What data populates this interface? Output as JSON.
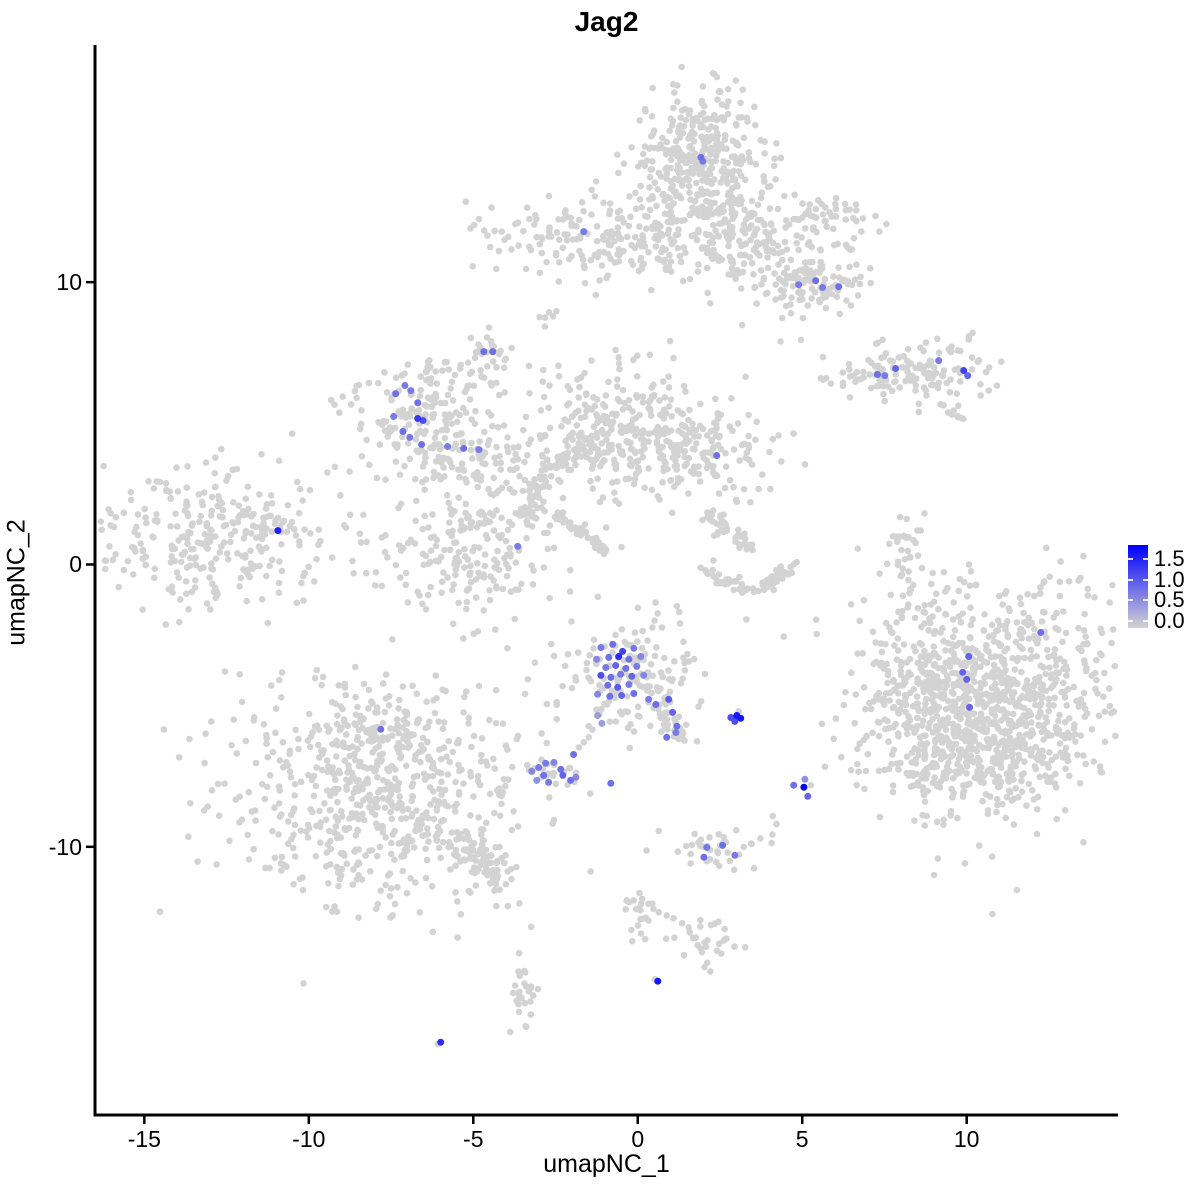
{
  "title": "Jag2",
  "axes": {
    "x_label": "umapNC_1",
    "y_label": "umapNC_2",
    "x_ticks": [
      "-15",
      "-10",
      "-5",
      "0",
      "5",
      "10"
    ],
    "x_tick_values": [
      -15,
      -10,
      -5,
      0,
      5,
      10
    ],
    "y_ticks": [
      "10",
      "0",
      "-10"
    ],
    "y_tick_values": [
      10,
      0,
      -10
    ]
  },
  "legend": {
    "tick_labels": [
      "1.5",
      "1.0",
      "0.5",
      "0.0"
    ],
    "tick_values": [
      1.5,
      1.0,
      0.5,
      0.0
    ],
    "low_color": "#d3d3d3",
    "high_color": "#0000ff",
    "bar_min": -0.17,
    "bar_max": 1.84
  },
  "colors": {
    "point_grey": "#d3d3d3",
    "axis": "#000000"
  },
  "chart_data": {
    "type": "scatter",
    "title": "Jag2",
    "xlabel": "umapNC_1",
    "ylabel": "umapNC_2",
    "x_domain": [
      -16.5,
      14.6
    ],
    "y_domain": [
      -19.5,
      18.4
    ],
    "point_radius_px": 3.3,
    "value_range": [
      0,
      1.9
    ],
    "grey_clusters": [
      {
        "type": "blob",
        "cx": 1.9,
        "cy": 14.2,
        "sx": 1.05,
        "sy": 1.25,
        "n": 380
      },
      {
        "type": "blob",
        "cx": 1.5,
        "cy": 11.6,
        "sx": 1.5,
        "sy": 0.9,
        "n": 110
      },
      {
        "type": "blob",
        "cx": 4.3,
        "cy": 10.9,
        "sx": 1.3,
        "sy": 1.0,
        "n": 140
      },
      {
        "type": "blob",
        "cx": 5.4,
        "cy": 9.9,
        "sx": 0.75,
        "sy": 0.5,
        "n": 70
      },
      {
        "type": "blob",
        "cx": 6.2,
        "cy": 12.4,
        "sx": 0.7,
        "sy": 0.35,
        "n": 35
      },
      {
        "type": "blob",
        "cx": 3.0,
        "cy": 12.2,
        "sx": 0.8,
        "sy": 0.7,
        "n": 45
      },
      {
        "type": "blob",
        "cx": -2.0,
        "cy": 11.7,
        "sx": 1.3,
        "sy": 0.7,
        "n": 110
      },
      {
        "type": "blob",
        "cx": -0.3,
        "cy": 11.2,
        "sx": 0.7,
        "sy": 0.4,
        "n": 25
      },
      {
        "type": "blob",
        "cx": -2.7,
        "cy": 8.8,
        "sx": 0.25,
        "sy": 0.2,
        "n": 6
      },
      {
        "type": "blob",
        "cx": -4.5,
        "cy": 7.4,
        "sx": 0.35,
        "sy": 0.4,
        "n": 24
      },
      {
        "type": "blob",
        "cx": 8.9,
        "cy": 6.9,
        "sx": 1.2,
        "sy": 0.5,
        "n": 95
      },
      {
        "type": "blob",
        "cx": 7.4,
        "cy": 6.6,
        "sx": 0.85,
        "sy": 0.3,
        "n": 45
      },
      {
        "type": "line",
        "x1": 9.3,
        "y1": 5.6,
        "x2": 9.8,
        "y2": 5.0,
        "n": 12,
        "jitter": 0.12
      },
      {
        "type": "blob",
        "cx": -6.6,
        "cy": 5.3,
        "sx": 1.3,
        "sy": 1.1,
        "n": 160
      },
      {
        "type": "blob",
        "cx": -4.9,
        "cy": 4.0,
        "sx": 1.1,
        "sy": 0.5,
        "n": 60
      },
      {
        "type": "blob",
        "cx": -5.6,
        "cy": 6.4,
        "sx": 0.8,
        "sy": 0.4,
        "n": 25
      },
      {
        "type": "blob",
        "cx": -0.8,
        "cy": 4.8,
        "sx": 1.3,
        "sy": 1.3,
        "n": 230
      },
      {
        "type": "line",
        "x1": -2.9,
        "y1": 3.2,
        "x2": -1.4,
        "y2": 4.4,
        "n": 50,
        "jitter": 0.25
      },
      {
        "type": "blob",
        "cx": 1.9,
        "cy": 3.9,
        "sx": 1.1,
        "sy": 0.9,
        "n": 150
      },
      {
        "type": "blob",
        "cx": 0.6,
        "cy": 4.5,
        "sx": 0.7,
        "sy": 0.5,
        "n": 35
      },
      {
        "type": "line",
        "x1": -3.0,
        "y1": 2.9,
        "x2": -3.4,
        "y2": 1.6,
        "n": 45,
        "jitter": 0.2
      },
      {
        "type": "blob",
        "cx": -5.2,
        "cy": 0.5,
        "sx": 1.4,
        "sy": 1.3,
        "n": 210
      },
      {
        "type": "line",
        "x1": -2.5,
        "y1": 1.8,
        "x2": -1.0,
        "y2": 0.5,
        "n": 50,
        "jitter": 0.07
      },
      {
        "type": "blob",
        "cx": -4.2,
        "cy": 2.5,
        "sx": 0.7,
        "sy": 0.5,
        "n": 18
      },
      {
        "type": "blob",
        "cx": -13.0,
        "cy": 1.1,
        "sx": 1.8,
        "sy": 1.3,
        "n": 290
      },
      {
        "type": "blob",
        "cx": -11.4,
        "cy": 1.3,
        "sx": 0.5,
        "sy": 0.3,
        "n": 22
      },
      {
        "type": "line",
        "x1": 2.1,
        "y1": 1.8,
        "x2": 3.3,
        "y2": 0.6,
        "n": 40,
        "jitter": 0.15
      },
      {
        "type": "arc",
        "cx": 3.35,
        "cy": 0.35,
        "rx": 1.3,
        "ry": 1.15,
        "a0": 195,
        "a1": 345,
        "n": 75,
        "jitter": 0.13
      },
      {
        "type": "blob",
        "cx": 8.2,
        "cy": 0.0,
        "sx": 0.3,
        "sy": 1.1,
        "n": 40
      },
      {
        "type": "blob",
        "cx": 10.7,
        "cy": -5.0,
        "sx": 2.0,
        "sy": 1.9,
        "n": 1050
      },
      {
        "type": "blob",
        "cx": 8.9,
        "cy": -4.4,
        "sx": 0.7,
        "sy": 1.6,
        "n": 90
      },
      {
        "type": "blob",
        "cx": 10.3,
        "cy": -7.4,
        "sx": 1.5,
        "sy": 0.5,
        "n": 60
      },
      {
        "type": "blob",
        "cx": -0.4,
        "cy": -3.9,
        "sx": 1.1,
        "sy": 1.1,
        "n": 150
      },
      {
        "type": "line",
        "x1": 0.5,
        "y1": -5.0,
        "x2": 1.4,
        "y2": -6.3,
        "n": 35,
        "jitter": 0.18
      },
      {
        "type": "blob",
        "cx": -8.1,
        "cy": -8.0,
        "sx": 2.2,
        "sy": 1.9,
        "n": 620
      },
      {
        "type": "blob",
        "cx": -7.9,
        "cy": -5.9,
        "sx": 0.9,
        "sy": 0.45,
        "n": 55
      },
      {
        "type": "line",
        "x1": -5.8,
        "y1": -9.6,
        "x2": -3.9,
        "y2": -11.3,
        "n": 90,
        "jitter": 0.4
      },
      {
        "type": "blob",
        "cx": -2.55,
        "cy": -7.3,
        "sx": 0.55,
        "sy": 0.3,
        "n": 18
      },
      {
        "type": "blob",
        "cx": 2.4,
        "cy": -10.0,
        "sx": 0.75,
        "sy": 0.45,
        "n": 40
      },
      {
        "type": "blob",
        "cx": 0.0,
        "cy": -12.3,
        "sx": 0.3,
        "sy": 0.5,
        "n": 22
      },
      {
        "type": "blob",
        "cx": 2.1,
        "cy": -13.3,
        "sx": 0.6,
        "sy": 0.35,
        "n": 30
      },
      {
        "type": "blob",
        "cx": -3.4,
        "cy": -15.2,
        "sx": 0.25,
        "sy": 0.85,
        "n": 28
      }
    ],
    "grey_singles": [
      [
        3.3,
        -1.95
      ],
      [
        4.44,
        -2.55
      ],
      [
        3.07,
        -5.2
      ],
      [
        5.26,
        -7.82
      ],
      [
        -4.3,
        -12.1
      ],
      [
        -3.95,
        -12.1
      ],
      [
        0.64,
        -12.32
      ],
      [
        0.88,
        -12.43
      ],
      [
        1.09,
        -12.53
      ],
      [
        1.55,
        -12.85
      ],
      [
        1.58,
        -13.03
      ],
      [
        0.52,
        -14.69
      ],
      [
        -6.08,
        -16.99
      ],
      [
        -1.79,
        -6.48
      ],
      [
        -1.64,
        -6.3
      ],
      [
        -1.49,
        -6.12
      ],
      [
        -1.43,
        -10.87
      ]
    ],
    "expressing_points": [
      [
        1.92,
        14.42,
        0.9
      ],
      [
        1.98,
        14.28,
        0.8
      ],
      [
        -1.64,
        11.79,
        0.8
      ],
      [
        4.89,
        9.91,
        0.8
      ],
      [
        5.41,
        10.05,
        0.9
      ],
      [
        5.62,
        9.81,
        0.8
      ],
      [
        6.11,
        9.84,
        0.9
      ],
      [
        -4.68,
        7.54,
        0.9
      ],
      [
        -4.41,
        7.54,
        0.9
      ],
      [
        7.29,
        6.73,
        0.9
      ],
      [
        7.51,
        6.69,
        0.8
      ],
      [
        7.84,
        6.94,
        1.0
      ],
      [
        9.15,
        7.22,
        0.8
      ],
      [
        9.91,
        6.87,
        1.3
      ],
      [
        10.03,
        6.69,
        1.0
      ],
      [
        -7.08,
        6.34,
        0.8
      ],
      [
        -7.36,
        6.05,
        0.9
      ],
      [
        -6.9,
        6.16,
        0.8
      ],
      [
        -6.69,
        5.73,
        0.9
      ],
      [
        -7.42,
        5.24,
        0.8
      ],
      [
        -6.69,
        5.17,
        1.4
      ],
      [
        -6.53,
        5.1,
        1.2
      ],
      [
        -7.14,
        4.71,
        0.9
      ],
      [
        -6.93,
        4.5,
        0.8
      ],
      [
        -6.57,
        4.25,
        0.9
      ],
      [
        -5.78,
        4.18,
        0.8
      ],
      [
        -5.29,
        4.11,
        0.9
      ],
      [
        -4.83,
        4.07,
        0.8
      ],
      [
        2.4,
        3.86,
        0.9
      ],
      [
        -10.94,
        1.2,
        1.6
      ],
      [
        -3.65,
        0.64,
        0.8
      ],
      [
        12.25,
        -2.41,
        0.9
      ],
      [
        10.06,
        -3.26,
        1.0
      ],
      [
        9.88,
        -3.82,
        1.0
      ],
      [
        10.0,
        -4.07,
        1.0
      ],
      [
        10.09,
        -5.06,
        1.0
      ],
      [
        -1.12,
        -2.94,
        0.8
      ],
      [
        -0.76,
        -2.83,
        0.9
      ],
      [
        -0.46,
        -3.08,
        1.3
      ],
      [
        -0.12,
        -2.97,
        0.8
      ],
      [
        -1.25,
        -3.36,
        0.7
      ],
      [
        -0.88,
        -3.29,
        0.9
      ],
      [
        -0.58,
        -3.26,
        1.5
      ],
      [
        -0.27,
        -3.36,
        0.9
      ],
      [
        0.09,
        -3.26,
        0.7
      ],
      [
        -0.97,
        -3.65,
        0.8
      ],
      [
        -0.67,
        -3.58,
        1.0
      ],
      [
        -0.36,
        -3.68,
        0.9
      ],
      [
        -0.03,
        -3.61,
        0.8
      ],
      [
        -1.12,
        -3.93,
        1.2
      ],
      [
        -0.82,
        -4.0,
        0.9
      ],
      [
        -0.52,
        -3.89,
        0.8
      ],
      [
        -0.18,
        -3.96,
        1.0
      ],
      [
        0.18,
        -3.93,
        0.7
      ],
      [
        -0.91,
        -4.28,
        0.9
      ],
      [
        -0.61,
        -4.35,
        1.1
      ],
      [
        -0.27,
        -4.25,
        0.8
      ],
      [
        -1.22,
        -4.6,
        0.7
      ],
      [
        -0.85,
        -4.67,
        0.9
      ],
      [
        -0.49,
        -4.64,
        1.0
      ],
      [
        -0.12,
        -4.57,
        0.9
      ],
      [
        0.33,
        -4.78,
        0.8
      ],
      [
        0.55,
        -4.96,
        0.9
      ],
      [
        0.94,
        -4.78,
        1.1
      ],
      [
        1.06,
        -5.24,
        1.0
      ],
      [
        1.19,
        -5.73,
        0.9
      ],
      [
        1.16,
        -5.95,
        0.8
      ],
      [
        0.88,
        -6.12,
        0.9
      ],
      [
        -1.22,
        -5.35,
        0.5
      ],
      [
        -1.09,
        -5.63,
        0.5
      ],
      [
        2.83,
        -5.42,
        1.2
      ],
      [
        3.01,
        -5.35,
        1.7
      ],
      [
        3.13,
        -5.45,
        1.7
      ],
      [
        2.95,
        -5.56,
        1.2
      ],
      [
        -7.81,
        -5.84,
        0.9
      ],
      [
        -1.95,
        -6.73,
        0.9
      ],
      [
        -2.8,
        -7.04,
        0.8
      ],
      [
        -2.55,
        -7.01,
        0.7
      ],
      [
        -3.01,
        -7.19,
        0.8
      ],
      [
        -2.34,
        -7.26,
        0.9
      ],
      [
        -3.22,
        -7.33,
        0.7
      ],
      [
        -2.86,
        -7.47,
        0.9
      ],
      [
        -2.28,
        -7.47,
        1.0
      ],
      [
        -3.07,
        -7.65,
        0.6
      ],
      [
        -2.71,
        -7.72,
        0.8
      ],
      [
        -2.04,
        -7.65,
        0.9
      ],
      [
        -1.88,
        -7.54,
        0.7
      ],
      [
        -0.82,
        -7.75,
        0.9
      ],
      [
        4.74,
        -7.82,
        0.9
      ],
      [
        5.08,
        -7.61,
        0.6
      ],
      [
        5.05,
        -7.89,
        1.9
      ],
      [
        5.17,
        -8.21,
        1.0
      ],
      [
        2.1,
        -10.02,
        0.8
      ],
      [
        2.58,
        -9.95,
        0.9
      ],
      [
        2.01,
        -10.37,
        0.9
      ],
      [
        2.95,
        -10.3,
        0.8
      ],
      [
        0.61,
        -14.76,
        1.7
      ],
      [
        -5.99,
        -16.92,
        1.5
      ]
    ]
  }
}
